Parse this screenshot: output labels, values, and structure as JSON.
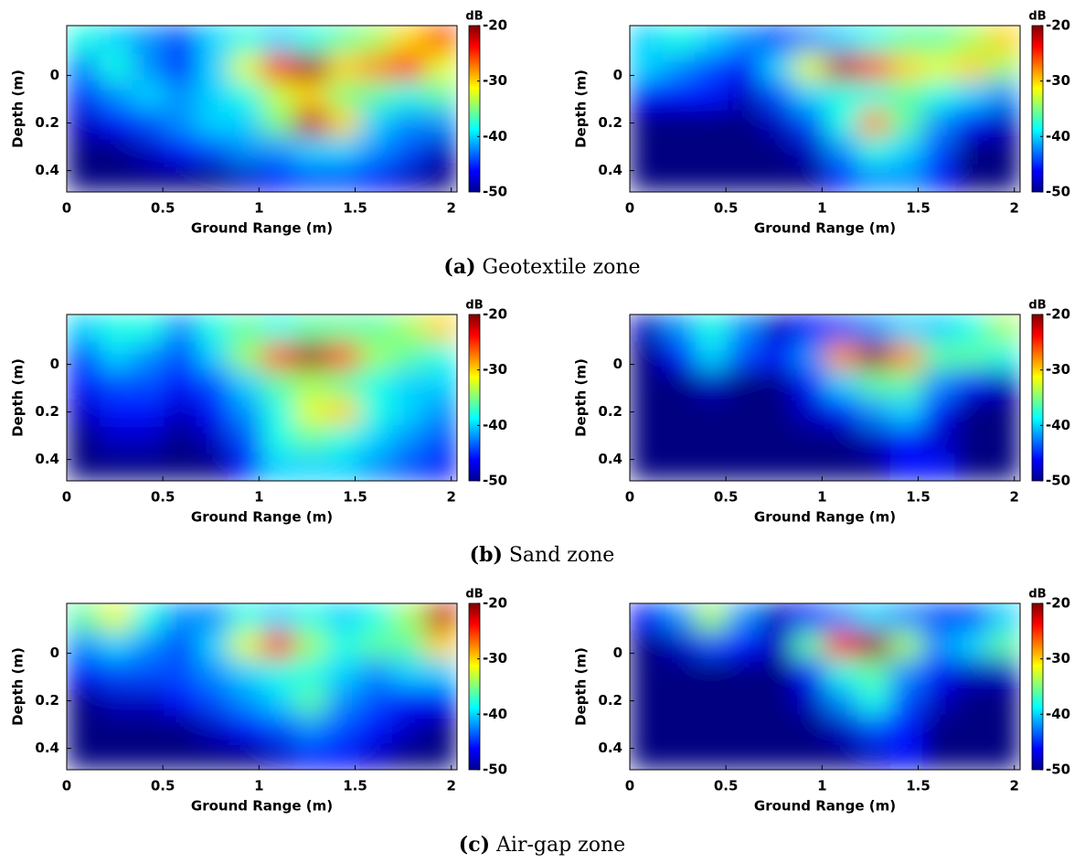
{
  "chart_data": [
    {
      "type": "heatmap",
      "xlabel": "Ground Range (m)",
      "ylabel": "Depth (m)",
      "xlim": [
        0,
        2.03
      ],
      "ylim": [
        -0.21,
        0.49
      ],
      "xticks": [
        0,
        0.5,
        1,
        1.5,
        2
      ],
      "yticks": [
        0,
        0.2,
        0.4
      ],
      "colorbar": {
        "label": "dB",
        "lim": [
          -50,
          -20
        ],
        "ticks": [
          -20,
          -30,
          -40,
          -50
        ]
      },
      "z": [
        [
          -38,
          -40,
          -42,
          -44,
          -40,
          -38,
          -40,
          -38,
          -36,
          -34,
          -30,
          -26
        ],
        [
          -42,
          -38,
          -42,
          -45,
          -40,
          -32,
          -24,
          -21,
          -30,
          -28,
          -25,
          -32
        ],
        [
          -45,
          -42,
          -40,
          -42,
          -40,
          -38,
          -33,
          -30,
          -35,
          -36,
          -38,
          -36
        ],
        [
          -48,
          -46,
          -44,
          -42,
          -40,
          -40,
          -35,
          -22,
          -30,
          -40,
          -42,
          -42
        ],
        [
          -50,
          -50,
          -48,
          -46,
          -44,
          -42,
          -42,
          -40,
          -40,
          -42,
          -44,
          -48
        ],
        [
          -50,
          -50,
          -50,
          -50,
          -50,
          -48,
          -46,
          -44,
          -44,
          -46,
          -48,
          -50
        ]
      ]
    },
    {
      "type": "heatmap",
      "xlabel": "Ground Range (m)",
      "ylabel": "Depth (m)",
      "xlim": [
        0,
        2.03
      ],
      "ylim": [
        -0.21,
        0.49
      ],
      "xticks": [
        0,
        0.5,
        1,
        1.5,
        2
      ],
      "yticks": [
        0,
        0.2,
        0.4
      ],
      "colorbar": {
        "label": "dB",
        "lim": [
          -50,
          -20
        ],
        "ticks": [
          -20,
          -30,
          -40,
          -50
        ]
      },
      "z": [
        [
          -40,
          -38,
          -40,
          -42,
          -44,
          -42,
          -40,
          -38,
          -36,
          -36,
          -34,
          -30
        ],
        [
          -40,
          -42,
          -44,
          -46,
          -40,
          -32,
          -22,
          -26,
          -30,
          -32,
          -30,
          -34
        ],
        [
          -46,
          -46,
          -46,
          -48,
          -44,
          -40,
          -38,
          -38,
          -36,
          -38,
          -40,
          -42
        ],
        [
          -50,
          -50,
          -50,
          -50,
          -48,
          -44,
          -38,
          -28,
          -36,
          -42,
          -46,
          -48
        ],
        [
          -50,
          -50,
          -50,
          -50,
          -50,
          -48,
          -42,
          -38,
          -40,
          -44,
          -50,
          -50
        ],
        [
          -50,
          -50,
          -50,
          -50,
          -50,
          -50,
          -46,
          -42,
          -42,
          -46,
          -50,
          -50
        ]
      ]
    },
    {
      "type": "heatmap",
      "xlabel": "Ground Range (m)",
      "ylabel": "Depth (m)",
      "xlim": [
        0,
        2.03
      ],
      "ylim": [
        -0.21,
        0.49
      ],
      "xticks": [
        0,
        0.5,
        1,
        1.5,
        2
      ],
      "yticks": [
        0,
        0.2,
        0.4
      ],
      "colorbar": {
        "label": "dB",
        "lim": [
          -50,
          -20
        ],
        "ticks": [
          -20,
          -30,
          -40,
          -50
        ]
      },
      "z": [
        [
          -40,
          -38,
          -38,
          -42,
          -38,
          -36,
          -38,
          -36,
          -36,
          -36,
          -34,
          -30
        ],
        [
          -44,
          -40,
          -42,
          -44,
          -40,
          -34,
          -26,
          -21,
          -26,
          -34,
          -36,
          -38
        ],
        [
          -46,
          -44,
          -44,
          -46,
          -44,
          -40,
          -36,
          -34,
          -36,
          -38,
          -40,
          -40
        ],
        [
          -48,
          -46,
          -46,
          -48,
          -46,
          -42,
          -38,
          -32,
          -30,
          -38,
          -40,
          -42
        ],
        [
          -50,
          -48,
          -48,
          -50,
          -48,
          -44,
          -38,
          -36,
          -38,
          -40,
          -42,
          -44
        ],
        [
          -50,
          -50,
          -50,
          -50,
          -50,
          -46,
          -40,
          -40,
          -40,
          -42,
          -44,
          -46
        ]
      ]
    },
    {
      "type": "heatmap",
      "xlabel": "Ground Range (m)",
      "ylabel": "Depth (m)",
      "xlim": [
        0,
        2.03
      ],
      "ylim": [
        -0.21,
        0.49
      ],
      "xticks": [
        0,
        0.5,
        1,
        1.5,
        2
      ],
      "yticks": [
        0,
        0.2,
        0.4
      ],
      "colorbar": {
        "label": "dB",
        "lim": [
          -50,
          -20
        ],
        "ticks": [
          -20,
          -30,
          -40,
          -50
        ]
      },
      "z": [
        [
          -48,
          -42,
          -38,
          -42,
          -48,
          -46,
          -44,
          -42,
          -40,
          -40,
          -38,
          -34
        ],
        [
          -50,
          -46,
          -40,
          -44,
          -46,
          -42,
          -28,
          -21,
          -28,
          -36,
          -36,
          -38
        ],
        [
          -50,
          -50,
          -48,
          -50,
          -50,
          -46,
          -40,
          -36,
          -36,
          -42,
          -46,
          -48
        ],
        [
          -50,
          -50,
          -50,
          -50,
          -50,
          -48,
          -46,
          -42,
          -40,
          -46,
          -50,
          -50
        ],
        [
          -50,
          -50,
          -50,
          -50,
          -50,
          -50,
          -50,
          -48,
          -46,
          -48,
          -50,
          -50
        ],
        [
          -50,
          -50,
          -50,
          -50,
          -50,
          -50,
          -50,
          -50,
          -46,
          -46,
          -50,
          -50
        ]
      ]
    },
    {
      "type": "heatmap",
      "xlabel": "Ground Range (m)",
      "ylabel": "Depth (m)",
      "xlim": [
        0,
        2.03
      ],
      "ylim": [
        -0.21,
        0.49
      ],
      "xticks": [
        0,
        0.5,
        1,
        1.5,
        2
      ],
      "yticks": [
        0,
        0.2,
        0.4
      ],
      "colorbar": {
        "label": "dB",
        "lim": [
          -50,
          -20
        ],
        "ticks": [
          -20,
          -30,
          -40,
          -50
        ]
      },
      "z": [
        [
          -36,
          -32,
          -38,
          -42,
          -42,
          -38,
          -40,
          -38,
          -40,
          -38,
          -34,
          -22
        ],
        [
          -42,
          -40,
          -42,
          -44,
          -40,
          -32,
          -24,
          -34,
          -38,
          -36,
          -36,
          -30
        ],
        [
          -46,
          -44,
          -44,
          -44,
          -42,
          -40,
          -38,
          -38,
          -40,
          -42,
          -40,
          -40
        ],
        [
          -50,
          -48,
          -48,
          -46,
          -44,
          -42,
          -40,
          -36,
          -42,
          -44,
          -46,
          -46
        ],
        [
          -50,
          -50,
          -50,
          -50,
          -48,
          -46,
          -44,
          -42,
          -44,
          -46,
          -48,
          -50
        ],
        [
          -50,
          -50,
          -50,
          -50,
          -50,
          -50,
          -48,
          -46,
          -46,
          -48,
          -50,
          -50
        ]
      ]
    },
    {
      "type": "heatmap",
      "xlabel": "Ground Range (m)",
      "ylabel": "Depth (m)",
      "xlim": [
        0,
        2.03
      ],
      "ylim": [
        -0.21,
        0.49
      ],
      "xticks": [
        0,
        0.5,
        1,
        1.5,
        2
      ],
      "yticks": [
        0,
        0.2,
        0.4
      ],
      "colorbar": {
        "label": "dB",
        "lim": [
          -50,
          -20
        ],
        "ticks": [
          -20,
          -30,
          -40,
          -50
        ]
      },
      "z": [
        [
          -46,
          -42,
          -34,
          -42,
          -48,
          -46,
          -42,
          -40,
          -42,
          -44,
          -44,
          -40
        ],
        [
          -50,
          -48,
          -44,
          -46,
          -48,
          -36,
          -24,
          -21,
          -34,
          -42,
          -40,
          -36
        ],
        [
          -50,
          -50,
          -50,
          -50,
          -50,
          -46,
          -38,
          -36,
          -42,
          -46,
          -48,
          -48
        ],
        [
          -50,
          -50,
          -50,
          -50,
          -50,
          -48,
          -42,
          -38,
          -44,
          -48,
          -50,
          -50
        ],
        [
          -50,
          -50,
          -50,
          -50,
          -50,
          -50,
          -48,
          -44,
          -46,
          -50,
          -50,
          -50
        ],
        [
          -50,
          -50,
          -50,
          -50,
          -50,
          -50,
          -50,
          -48,
          -46,
          -50,
          -50,
          -50
        ]
      ]
    }
  ],
  "captions": [
    {
      "label": "(a)",
      "text": "Geotextile zone"
    },
    {
      "label": "(b)",
      "text": "Sand zone"
    },
    {
      "label": "(c)",
      "text": "Air-gap zone"
    }
  ]
}
